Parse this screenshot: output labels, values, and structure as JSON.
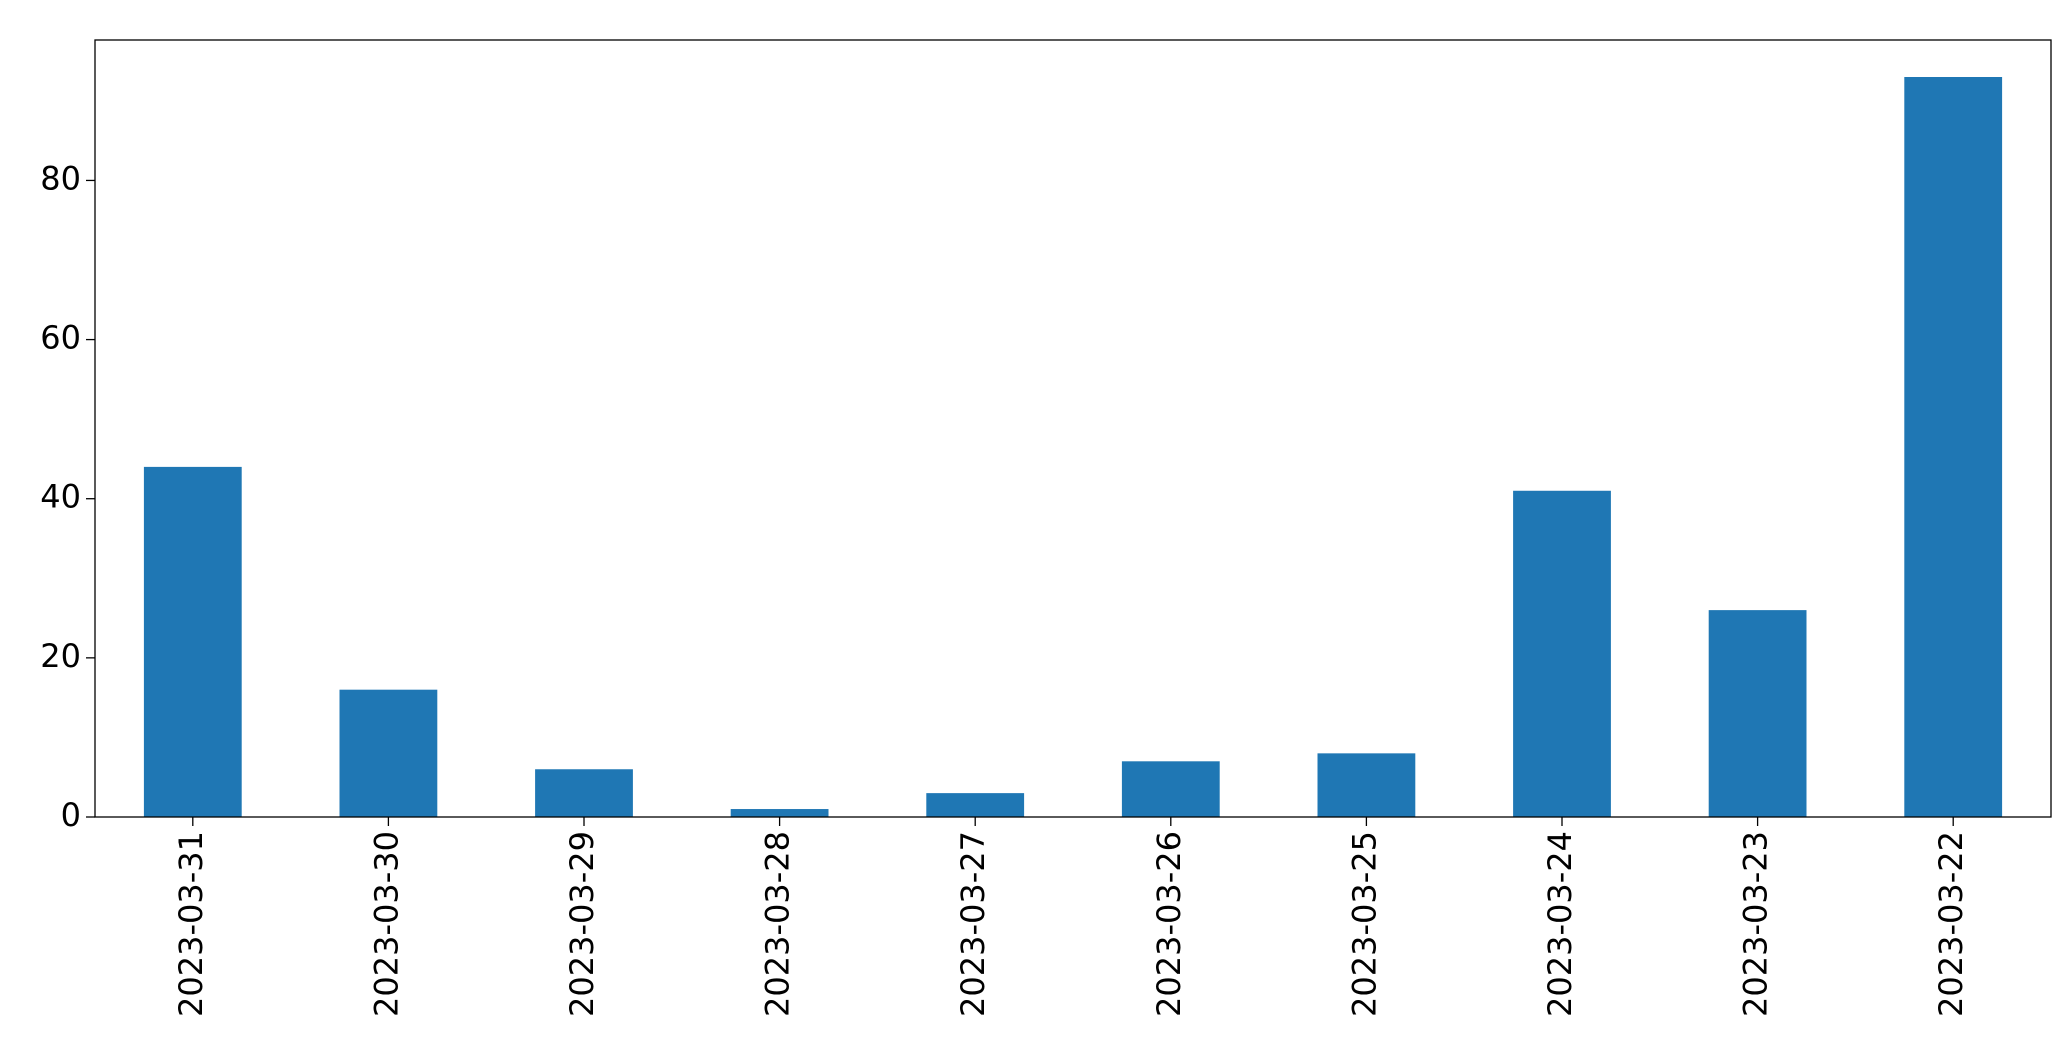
{
  "chart_data": {
    "type": "bar",
    "categories": [
      "2023-03-31",
      "2023-03-30",
      "2023-03-29",
      "2023-03-28",
      "2023-03-27",
      "2023-03-26",
      "2023-03-25",
      "2023-03-24",
      "2023-03-23",
      "2023-03-22"
    ],
    "values": [
      44,
      16,
      6,
      1,
      3,
      7,
      8,
      41,
      26,
      93
    ],
    "color": "#1f77b4",
    "ylim": [
      0,
      97.65
    ],
    "yticks": [
      0,
      20,
      40,
      60,
      80
    ],
    "grid": false
  }
}
